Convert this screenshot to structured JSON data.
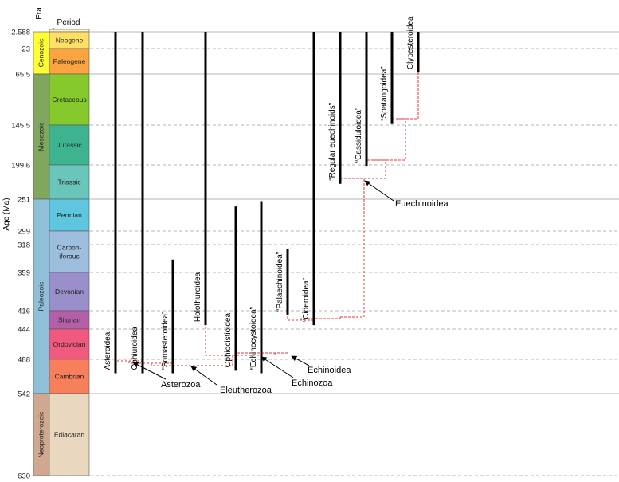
{
  "axis": {
    "label": "Age (Ma)"
  },
  "headers": {
    "era": "Era",
    "period_line1": "Period",
    "period_line2": "Quaternary"
  },
  "colors": {
    "grid_solid": "#b4b4b4",
    "grid_dashed": "#b4b4b4",
    "clade_line": "#e8343a",
    "taxon_bar": "#000000",
    "box_border": "#555555"
  },
  "eras": [
    {
      "name": "Cenozoic",
      "start": 0,
      "end": 65.5,
      "color": "#ffff33"
    },
    {
      "name": "Mesozoic",
      "start": 65.5,
      "end": 251,
      "color": "#7fa85e"
    },
    {
      "name": "Paleozoic",
      "start": 251,
      "end": 542,
      "color": "#8fbfd9"
    },
    {
      "name": "Neoproterozoic",
      "start": 542,
      "end": 630,
      "color": "#d0a890"
    }
  ],
  "periods": [
    {
      "name": "Neogene",
      "start": 2.588,
      "end": 23,
      "color": "#ffe066"
    },
    {
      "name": "Paleogene",
      "start": 23,
      "end": 65.5,
      "color": "#fca540"
    },
    {
      "name": "Cretaceous",
      "start": 65.5,
      "end": 145.5,
      "color": "#86c92c"
    },
    {
      "name": "Jurassic",
      "start": 145.5,
      "end": 199.6,
      "color": "#3db48f"
    },
    {
      "name": "Triassic",
      "start": 199.6,
      "end": 251,
      "color": "#6ac5ba"
    },
    {
      "name": "Permian",
      "start": 251,
      "end": 299,
      "color": "#5ec6de"
    },
    {
      "name": "Carbon-\niferous",
      "start": 299,
      "end": 359,
      "color": "#9dbedc"
    },
    {
      "name": "Devonian",
      "start": 359,
      "end": 416,
      "color": "#9a8fcb"
    },
    {
      "name": "Silurian",
      "start": 416,
      "end": 444,
      "color": "#b460a9"
    },
    {
      "name": "Ordovician",
      "start": 444,
      "end": 488,
      "color": "#ef5a7e"
    },
    {
      "name": "Cambrian",
      "start": 488,
      "end": 542,
      "color": "#f77f5c"
    },
    {
      "name": "Ediacaran",
      "start": 542,
      "end": 630,
      "color": "#e9d7bf"
    }
  ],
  "quaternary": {
    "start": 0,
    "end": 2.588,
    "color": "#fff5c2"
  },
  "ticks": [
    {
      "age": 2.588,
      "label": "2.588",
      "style": "solid"
    },
    {
      "age": 23,
      "label": "23",
      "style": "dashed"
    },
    {
      "age": 65.5,
      "label": "65.5",
      "style": "solid"
    },
    {
      "age": 145.5,
      "label": "145.5",
      "style": "dashed"
    },
    {
      "age": 199.6,
      "label": "199.6",
      "style": "dashed"
    },
    {
      "age": 251,
      "label": "251",
      "style": "solid"
    },
    {
      "age": 299,
      "label": "299",
      "style": "dashed"
    },
    {
      "age": 318,
      "label": "318",
      "style": "dashed"
    },
    {
      "age": 359,
      "label": "359",
      "style": "dashed"
    },
    {
      "age": 416,
      "label": "416",
      "style": "dashed"
    },
    {
      "age": 444,
      "label": "444",
      "style": "dashed"
    },
    {
      "age": 488,
      "label": "488",
      "style": "dashed"
    },
    {
      "age": 542,
      "label": "542",
      "style": "solid"
    },
    {
      "age": 630,
      "label": "630",
      "style": "dashed"
    }
  ],
  "taxa": [
    {
      "name": "Asteroidea",
      "first_appearance": 510
    },
    {
      "name": "Ophiuroidea",
      "first_appearance": 510
    },
    {
      "name": "“Somasteroidea”",
      "first_appearance": 510
    },
    {
      "name": "Holothuroidea",
      "first_appearance": 438
    },
    {
      "name": "Ophiocistioidea",
      "first_appearance": 506
    },
    {
      "name": "“Echinocystoidea”",
      "first_appearance": 510
    },
    {
      "name": "“Palaechinoidea”",
      "first_appearance": 422
    },
    {
      "name": "“Cideroidea”",
      "first_appearance": 438
    },
    {
      "name": "“Regular euechinoids”",
      "first_appearance": 228
    },
    {
      "name": "“Cassiduloidea”",
      "first_appearance": 201
    },
    {
      "name": "“Spatangoidea”",
      "first_appearance": 144
    },
    {
      "name": "Clypesteroidea",
      "first_appearance": 63
    }
  ],
  "clades": [
    {
      "name": "Asterozoa"
    },
    {
      "name": "Eleutherozoa"
    },
    {
      "name": "Echinozoa"
    },
    {
      "name": "Echinoidea"
    },
    {
      "name": "Euechinoidea"
    }
  ]
}
